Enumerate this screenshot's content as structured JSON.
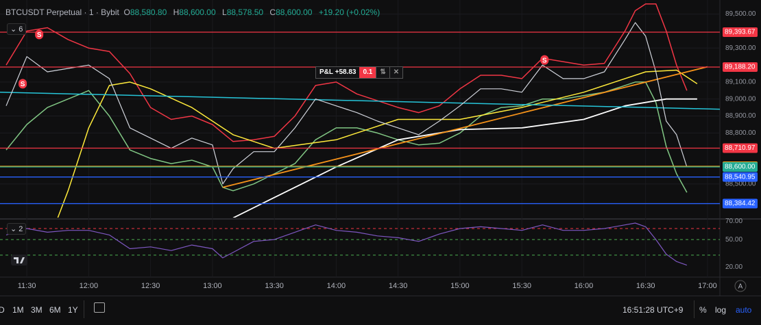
{
  "header": {
    "symbol": "BTCUSDT Perpetual · 1 · Bybit",
    "ohlc": [
      {
        "key": "O",
        "value": "88,580.80"
      },
      {
        "key": "H",
        "value": "88,600.00"
      },
      {
        "key": "L",
        "value": "88,578.50"
      },
      {
        "key": "C",
        "value": "88,600.00"
      }
    ],
    "change": "+19.20 (+0.02%)",
    "main_indicators": "6",
    "rsi_indicators": "2"
  },
  "position": {
    "pnl": "P&L +58.83",
    "qty": "0.1"
  },
  "toolbar": {
    "ranges": [
      "D",
      "1M",
      "3M",
      "6M",
      "1Y"
    ],
    "clock": "16:51:28 UTC+9",
    "options": [
      "%",
      "log",
      "auto"
    ],
    "scale_button": "A"
  },
  "chart_data": [
    {
      "type": "line",
      "xlim": [
        "11:17",
        "17:06"
      ],
      "xticks": [
        "11:30",
        "12:00",
        "12:30",
        "13:00",
        "13:30",
        "14:00",
        "14:30",
        "15:00",
        "15:30",
        "16:00",
        "16:30",
        "17:00"
      ],
      "ylim": [
        88302,
        89583
      ],
      "yticks": [
        {
          "value": 88500,
          "label": "88,500.00"
        },
        {
          "value": 88800,
          "label": "88,800.00"
        },
        {
          "value": 88900,
          "label": "88,900.00"
        },
        {
          "value": 89000,
          "label": "89,000.00"
        },
        {
          "value": 89100,
          "label": "89,100.00"
        },
        {
          "value": 89300,
          "label": "89,300.00"
        },
        {
          "value": 89500,
          "label": "89,500.00"
        }
      ],
      "grid": true,
      "series": [
        {
          "color": "#f23645",
          "width": 1.5,
          "x": [
            "11:20",
            "11:30",
            "11:40",
            "11:50",
            "12:00",
            "12:10",
            "12:20",
            "12:30",
            "12:40",
            "12:50",
            "13:00",
            "13:05",
            "13:10",
            "13:20",
            "13:30",
            "13:40",
            "13:50",
            "14:00",
            "14:10",
            "14:20",
            "14:30",
            "14:40",
            "14:50",
            "15:00",
            "15:10",
            "15:20",
            "15:30",
            "15:40",
            "15:50",
            "16:00",
            "16:10",
            "16:20",
            "16:25",
            "16:30",
            "16:35",
            "16:40",
            "16:45",
            "16:50"
          ],
          "values": [
            89200,
            89400,
            89420,
            89350,
            89300,
            89280,
            89150,
            88950,
            88880,
            88900,
            88850,
            88800,
            88750,
            88760,
            88780,
            88900,
            89080,
            89100,
            89030,
            88990,
            88950,
            88920,
            88960,
            89060,
            89140,
            89140,
            89120,
            89240,
            89220,
            89200,
            89210,
            89400,
            89520,
            89560,
            89560,
            89400,
            89200,
            89050
          ]
        },
        {
          "color": "#81c784",
          "width": 1.5,
          "x": [
            "11:20",
            "11:30",
            "11:40",
            "11:50",
            "12:00",
            "12:10",
            "12:20",
            "12:30",
            "12:40",
            "12:50",
            "13:00",
            "13:05",
            "13:10",
            "13:20",
            "13:30",
            "13:40",
            "13:50",
            "14:00",
            "14:10",
            "14:20",
            "14:30",
            "14:40",
            "14:50",
            "15:00",
            "15:10",
            "15:20",
            "15:30",
            "15:40",
            "15:50",
            "16:00",
            "16:10",
            "16:20",
            "16:25",
            "16:30",
            "16:35",
            "16:40",
            "16:45",
            "16:50"
          ],
          "values": [
            88700,
            88850,
            88950,
            89000,
            89050,
            88900,
            88700,
            88650,
            88620,
            88640,
            88600,
            88480,
            88460,
            88500,
            88560,
            88620,
            88760,
            88830,
            88830,
            88800,
            88760,
            88730,
            88740,
            88800,
            88900,
            88950,
            88960,
            89000,
            89000,
            89020,
            89040,
            89080,
            89100,
            89100,
            88980,
            88720,
            88560,
            88450
          ]
        },
        {
          "color": "#ffeb3b",
          "width": 1.5,
          "x": [
            "11:45",
            "11:50",
            "12:00",
            "12:10",
            "12:20",
            "12:30",
            "12:50",
            "13:10",
            "13:30",
            "14:00",
            "14:30",
            "15:00",
            "15:30",
            "16:00",
            "16:30",
            "16:45",
            "16:55"
          ],
          "values": [
            88300,
            88460,
            88830,
            89080,
            89100,
            89060,
            88950,
            88790,
            88710,
            88760,
            88880,
            88880,
            88950,
            89040,
            89160,
            89170,
            89090
          ]
        },
        {
          "color": "#ffffff",
          "width": 1.8,
          "x": [
            "13:10",
            "13:30",
            "14:00",
            "14:30",
            "15:00",
            "15:30",
            "16:00",
            "16:20",
            "16:40",
            "16:55"
          ],
          "values": [
            88300,
            88420,
            88600,
            88760,
            88820,
            88830,
            88880,
            88960,
            89000,
            89000
          ]
        },
        {
          "color": "#f7931a",
          "width": 1.8,
          "x": [
            "13:05",
            "17:00"
          ],
          "values": [
            88480,
            89190
          ]
        },
        {
          "color": "#26c6da",
          "width": 1.5,
          "x": [
            "11:17",
            "17:06"
          ],
          "values": [
            89040,
            88940
          ]
        },
        {
          "color": "#d1d4dc",
          "width": 1.2,
          "x": [
            "11:20",
            "11:30",
            "11:40",
            "11:50",
            "12:00",
            "12:10",
            "12:20",
            "12:30",
            "12:40",
            "12:50",
            "13:00",
            "13:05",
            "13:10",
            "13:20",
            "13:30",
            "13:40",
            "13:50",
            "14:00",
            "14:10",
            "14:20",
            "14:30",
            "14:40",
            "14:50",
            "15:00",
            "15:10",
            "15:20",
            "15:30",
            "15:40",
            "15:50",
            "16:00",
            "16:10",
            "16:20",
            "16:25",
            "16:30",
            "16:35",
            "16:40",
            "16:45",
            "16:50"
          ],
          "values": [
            88960,
            89250,
            89160,
            89180,
            89200,
            89120,
            88830,
            88770,
            88710,
            88770,
            88730,
            88500,
            88590,
            88690,
            88690,
            88830,
            89000,
            88960,
            88920,
            88870,
            88830,
            88790,
            88870,
            88960,
            89060,
            89060,
            89040,
            89200,
            89120,
            89120,
            89160,
            89350,
            89450,
            89370,
            89160,
            88870,
            88790,
            88600
          ]
        }
      ],
      "price_lines": [
        {
          "value": 89393.67,
          "label": "89,393.67",
          "color": "#f23645"
        },
        {
          "value": 89188.2,
          "label": "89,188.20",
          "color": "#f23645"
        },
        {
          "value": 88710.97,
          "label": "88,710.97",
          "color": "#f23645"
        },
        {
          "value": 88604.05,
          "label": "88,604.05",
          "color": "#f7a21b"
        },
        {
          "value": 88600.0,
          "label": "88,600.00",
          "color": "#22ab94"
        },
        {
          "value": 88540.95,
          "label": "88,540.95",
          "color": "#2962ff"
        },
        {
          "value": 88384.42,
          "label": "88,384.42",
          "color": "#2962ff"
        }
      ],
      "markers": [
        {
          "label": "S",
          "x": "11:28",
          "value": 89090
        },
        {
          "label": "S",
          "x": "11:36",
          "value": 89380
        },
        {
          "label": "S",
          "x": "15:41",
          "value": 89230
        }
      ]
    },
    {
      "type": "line",
      "xlim": [
        "11:17",
        "17:06"
      ],
      "ylim": [
        9,
        71
      ],
      "yticks": [
        {
          "value": 20,
          "label": "20.00"
        },
        {
          "value": 50,
          "label": "50.00"
        },
        {
          "value": 70,
          "label": "70.00"
        }
      ],
      "bands": [
        {
          "value": 62,
          "color": "#f23645"
        },
        {
          "value": 50,
          "color": "#4caf50"
        },
        {
          "value": 33,
          "color": "#4caf50"
        }
      ],
      "series": [
        {
          "color": "#7e57c2",
          "width": 1.2,
          "x": [
            "11:20",
            "11:30",
            "11:40",
            "11:50",
            "12:00",
            "12:10",
            "12:20",
            "12:30",
            "12:40",
            "12:50",
            "13:00",
            "13:05",
            "13:10",
            "13:20",
            "13:30",
            "13:40",
            "13:50",
            "14:00",
            "14:10",
            "14:20",
            "14:30",
            "14:40",
            "14:50",
            "15:00",
            "15:10",
            "15:20",
            "15:30",
            "15:40",
            "15:50",
            "16:00",
            "16:10",
            "16:20",
            "16:25",
            "16:30",
            "16:35",
            "16:40",
            "16:45",
            "16:50"
          ],
          "values": [
            55,
            62,
            58,
            60,
            60,
            55,
            40,
            42,
            38,
            44,
            40,
            30,
            36,
            48,
            50,
            58,
            66,
            60,
            58,
            54,
            52,
            48,
            56,
            62,
            64,
            62,
            60,
            66,
            60,
            60,
            62,
            66,
            68,
            64,
            50,
            34,
            26,
            22
          ]
        }
      ]
    }
  ]
}
